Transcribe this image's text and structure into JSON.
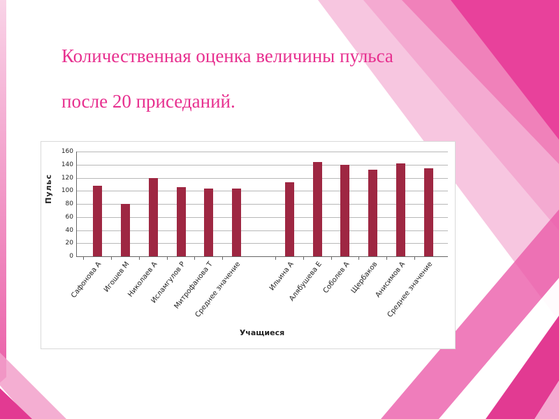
{
  "slide": {
    "title_lines": [
      "Количественная оценка величины пульса",
      "после 20 приседаний."
    ],
    "title_color": "#e7308f",
    "accent_color": "#e73c98"
  },
  "chart_data": {
    "type": "bar",
    "title": "",
    "categories": [
      "Сафонова А",
      "Игошев М",
      "Николаев А",
      "Исламгулов Р",
      "Митрофанова Т",
      "Среднее значение",
      "Ильина А",
      "Алябушева Е",
      "Соболев А",
      "Щербаков",
      "Анисимов А",
      "Среднее значение"
    ],
    "values": [
      108,
      80,
      120,
      106,
      103,
      103,
      113,
      144,
      140,
      132,
      142,
      134
    ],
    "group_break_after": 6,
    "xlabel": "Учащиеся",
    "ylabel": "Пульс",
    "ylim": [
      0,
      160
    ],
    "ytick_step": 20,
    "grid": true,
    "legend": "none",
    "bar_color": "#9e2742"
  }
}
